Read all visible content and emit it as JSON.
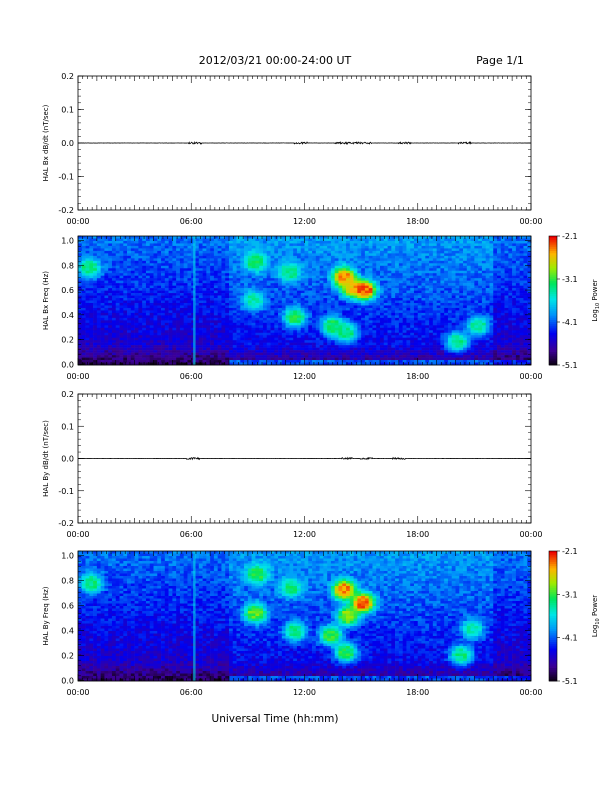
{
  "header": {
    "date_range": "2012/03/21  00:00-24:00 UT",
    "page": "Page 1/1"
  },
  "footer": {
    "xlabel": "Universal Time (hh:mm)"
  },
  "colorbar": {
    "ticks": [
      "-2.1",
      "-3.1",
      "-4.1",
      "-5.1"
    ],
    "label": "Log10 Power",
    "label_main": "Log",
    "label_sub": "10",
    "label_tail": " Power"
  },
  "chart_data": [
    {
      "type": "line",
      "ylabel": "HAL Bx dB/dt (nT/sec)",
      "xlim": [
        "00:00",
        "24:00"
      ],
      "ylim": [
        -0.2,
        0.2
      ],
      "yticks": [
        "0.2",
        "0.1",
        "0.0",
        "-0.1",
        "-0.2"
      ],
      "xticks": [
        "00:00",
        "06:00",
        "12:00",
        "18:00",
        "00:00"
      ],
      "series": [
        {
          "values_near": 0.0,
          "bursts_hours": [
            6.2,
            11.8,
            13.9,
            14.3,
            14.7,
            15.2,
            17.3,
            20.5
          ]
        }
      ]
    },
    {
      "type": "heatmap",
      "ylabel": "HAL Bx Freq (Hz)",
      "xlim": [
        "00:00",
        "24:00"
      ],
      "ylim": [
        0.0,
        1.0
      ],
      "yticks": [
        "1.0",
        "0.8",
        "0.6",
        "0.4",
        "0.2",
        "0.0"
      ],
      "xticks": [
        "00:00",
        "06:00",
        "12:00",
        "18:00",
        "00:00"
      ],
      "zlim": [
        -5.1,
        -2.1
      ],
      "features": [
        {
          "t": 0.6,
          "f": 0.75,
          "level": -3.3
        },
        {
          "t": 9.4,
          "f": 0.8,
          "level": -3.2
        },
        {
          "t": 9.3,
          "f": 0.5,
          "level": -3.4
        },
        {
          "t": 11.2,
          "f": 0.72,
          "level": -3.3
        },
        {
          "t": 11.5,
          "f": 0.37,
          "level": -3.2
        },
        {
          "t": 14.1,
          "f": 0.68,
          "level": -2.4
        },
        {
          "t": 14.5,
          "f": 0.6,
          "level": -2.6
        },
        {
          "t": 15.2,
          "f": 0.58,
          "level": -2.3
        },
        {
          "t": 13.5,
          "f": 0.3,
          "level": -3.2
        },
        {
          "t": 14.2,
          "f": 0.25,
          "level": -3.3
        },
        {
          "t": 20.1,
          "f": 0.18,
          "level": -3.3
        },
        {
          "t": 21.2,
          "f": 0.3,
          "level": -3.4
        }
      ]
    },
    {
      "type": "line",
      "ylabel": "HAL By dB/dt (nT/sec)",
      "xlim": [
        "00:00",
        "24:00"
      ],
      "ylim": [
        -0.2,
        0.2
      ],
      "yticks": [
        "0.2",
        "0.1",
        "0.0",
        "-0.1",
        "-0.2"
      ],
      "xticks": [
        "00:00",
        "06:00",
        "12:00",
        "18:00",
        "00:00"
      ],
      "series": [
        {
          "values_near": 0.0,
          "bursts_hours": [
            6.1,
            14.2,
            15.3,
            17.0
          ]
        }
      ]
    },
    {
      "type": "heatmap",
      "ylabel": "HAL By Freq (Hz)",
      "xlim": [
        "00:00",
        "24:00"
      ],
      "ylim": [
        0.0,
        1.0
      ],
      "yticks": [
        "1.0",
        "0.8",
        "0.6",
        "0.4",
        "0.2",
        "0.0"
      ],
      "xticks": [
        "00:00",
        "06:00",
        "12:00",
        "18:00",
        "00:00"
      ],
      "zlim": [
        -5.1,
        -2.1
      ],
      "features": [
        {
          "t": 0.7,
          "f": 0.75,
          "level": -3.3
        },
        {
          "t": 9.5,
          "f": 0.82,
          "level": -3.2
        },
        {
          "t": 9.4,
          "f": 0.52,
          "level": -3.0
        },
        {
          "t": 11.3,
          "f": 0.72,
          "level": -3.3
        },
        {
          "t": 11.5,
          "f": 0.38,
          "level": -3.3
        },
        {
          "t": 14.1,
          "f": 0.7,
          "level": -2.4
        },
        {
          "t": 14.3,
          "f": 0.5,
          "level": -2.9
        },
        {
          "t": 15.1,
          "f": 0.6,
          "level": -2.3
        },
        {
          "t": 13.4,
          "f": 0.35,
          "level": -3.1
        },
        {
          "t": 14.2,
          "f": 0.22,
          "level": -3.2
        },
        {
          "t": 20.3,
          "f": 0.2,
          "level": -3.3
        },
        {
          "t": 20.9,
          "f": 0.4,
          "level": -3.4
        }
      ]
    }
  ]
}
